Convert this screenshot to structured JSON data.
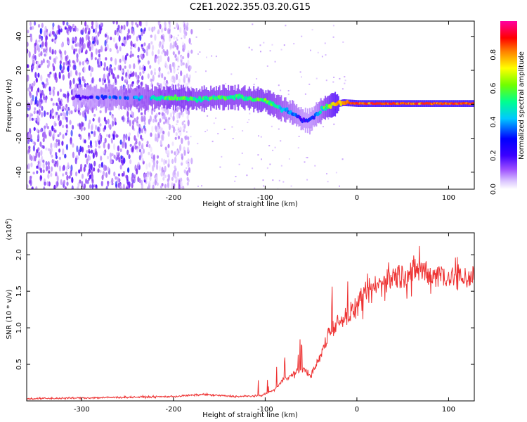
{
  "figure": {
    "title": "C2E1.2022.355.03.20.G15"
  },
  "chart_data": [
    {
      "type": "heatmap",
      "xlabel": "Height of straight line (km)",
      "ylabel": "Frequency (Hz)",
      "xlim": [
        -360,
        128
      ],
      "ylim": [
        -50,
        49
      ],
      "xticks": [
        -300,
        -200,
        -100,
        0,
        100
      ],
      "yticks": [
        -40,
        -20,
        0,
        20,
        40
      ],
      "colorbar": {
        "label": "Normalized spectral amplitude",
        "range": [
          0.0,
          1.0
        ],
        "ticks": [
          "0.0",
          "0.2",
          "0.4",
          "0.6",
          "0.8"
        ],
        "colormap": [
          "#ffffff",
          "#c7a6ff",
          "#8a2be2",
          "#4b00ff",
          "#0000ff",
          "#00d7ff",
          "#00ff80",
          "#7fff00",
          "#ffff00",
          "#ff8000",
          "#ff0000",
          "#ff00ff"
        ]
      },
      "signal_track": {
        "x": [
          -360,
          -300,
          -220,
          -200,
          -175,
          -150,
          -125,
          -100,
          -85,
          -70,
          -60,
          -52,
          -45,
          -35,
          -25,
          -15,
          0,
          50,
          128
        ],
        "freq": [
          4,
          4,
          4,
          4,
          3,
          4,
          4,
          2,
          -2,
          -5,
          -9,
          -10,
          -6,
          -2,
          0,
          1,
          0.5,
          0.5,
          0.5
        ],
        "amplitude": [
          0.25,
          0.3,
          0.55,
          0.65,
          0.6,
          0.6,
          0.6,
          0.65,
          0.55,
          0.45,
          0.35,
          0.35,
          0.4,
          0.6,
          0.8,
          0.85,
          0.9,
          0.9,
          0.9
        ]
      },
      "noise_region_x": [
        -360,
        -200
      ],
      "grid": false,
      "colors": {
        "strong": "#ff0000",
        "medium": "#00ff80",
        "weak": "#8a2be2"
      }
    },
    {
      "type": "line",
      "xlabel": "Height of straight line (km)",
      "ylabel": "SNR (10 * v/v)",
      "y_multiplier": "(x10",
      "y_multiplier_exp": "4",
      "xlim": [
        -360,
        128
      ],
      "ylim": [
        0,
        2.3
      ],
      "xticks": [
        -300,
        -200,
        -100,
        0,
        100
      ],
      "yticks": [
        0.5,
        1.0,
        1.5,
        2.0
      ],
      "ytick_labels": [
        "0.5",
        "1.0",
        "1.5",
        "2.0"
      ],
      "color": "#ee3333",
      "x": [
        -360,
        -300,
        -250,
        -200,
        -165,
        -160,
        -130,
        -105,
        -90,
        -80,
        -70,
        -60,
        -50,
        -40,
        -30,
        -20,
        -10,
        0,
        10,
        20,
        30,
        40,
        50,
        60,
        70,
        80,
        90,
        100,
        110,
        128
      ],
      "y": [
        0.03,
        0.04,
        0.05,
        0.06,
        0.09,
        0.08,
        0.06,
        0.07,
        0.15,
        0.3,
        0.35,
        0.45,
        0.35,
        0.6,
        0.95,
        1.1,
        1.15,
        1.3,
        1.45,
        1.55,
        1.65,
        1.7,
        1.72,
        1.75,
        1.8,
        1.72,
        1.75,
        1.7,
        1.68,
        1.7
      ]
    }
  ]
}
